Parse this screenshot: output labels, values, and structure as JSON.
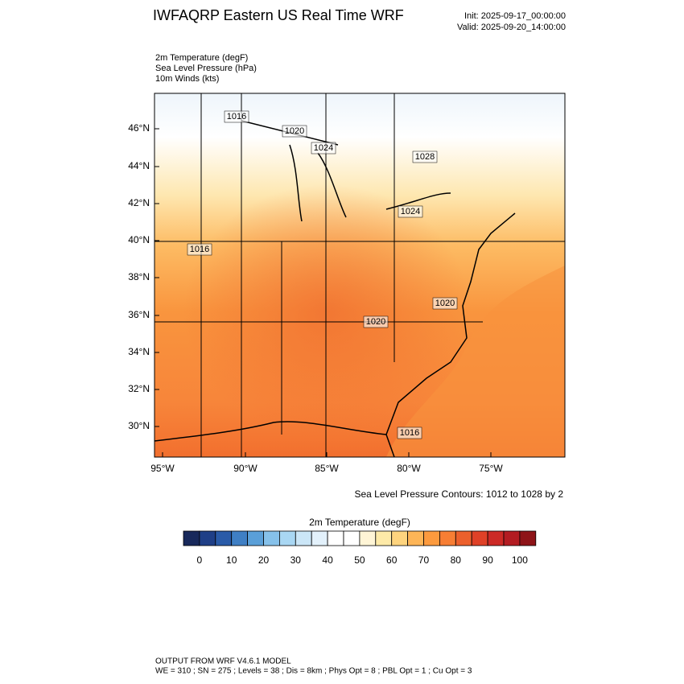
{
  "header": {
    "title": "IWFAQRP Eastern US Real Time WRF",
    "init": "Init: 2025-09-17_00:00:00",
    "valid": "Valid: 2025-09-20_14:00:00"
  },
  "fields": [
    "2m Temperature   (degF)",
    "Sea Level Pressure   (hPa)",
    "10m Winds   (kts)"
  ],
  "map": {
    "lat_labels": [
      "46°N",
      "44°N",
      "42°N",
      "40°N",
      "38°N",
      "36°N",
      "34°N",
      "32°N",
      "30°N"
    ],
    "lon_labels": [
      "95°W",
      "90°W",
      "85°W",
      "80°W",
      "75°W"
    ],
    "contour_labels": [
      1016,
      1020,
      1024,
      1028,
      1024,
      1016,
      1020,
      1020,
      1016
    ],
    "contour_note": "Sea Level Pressure Contours: 1012 to 1028 by 2"
  },
  "colorbar": {
    "title": "2m Temperature  (degF)",
    "colors": [
      "#18295b",
      "#1f3f87",
      "#2a5ba8",
      "#3f7fc4",
      "#5a9fd8",
      "#86c1ea",
      "#a9d7f3",
      "#cbe6f7",
      "#e3f1fb",
      "#ffffff",
      "#ffffff",
      "#fff5d6",
      "#feeaa8",
      "#fed47e",
      "#fdb557",
      "#fc9a3e",
      "#f77e34",
      "#ec602c",
      "#df4127",
      "#cc2a26",
      "#b31c22",
      "#8e1418"
    ],
    "ticks": [
      0,
      10,
      20,
      30,
      40,
      50,
      60,
      70,
      80,
      90,
      100
    ]
  },
  "footer": {
    "line1": "OUTPUT FROM WRF V4.6.1 MODEL",
    "line2": "WE = 310 ; SN = 275 ; Levels = 38 ; Dis = 8km ; Phys Opt = 8 ; PBL Opt = 1 ; Cu Opt = 3"
  }
}
